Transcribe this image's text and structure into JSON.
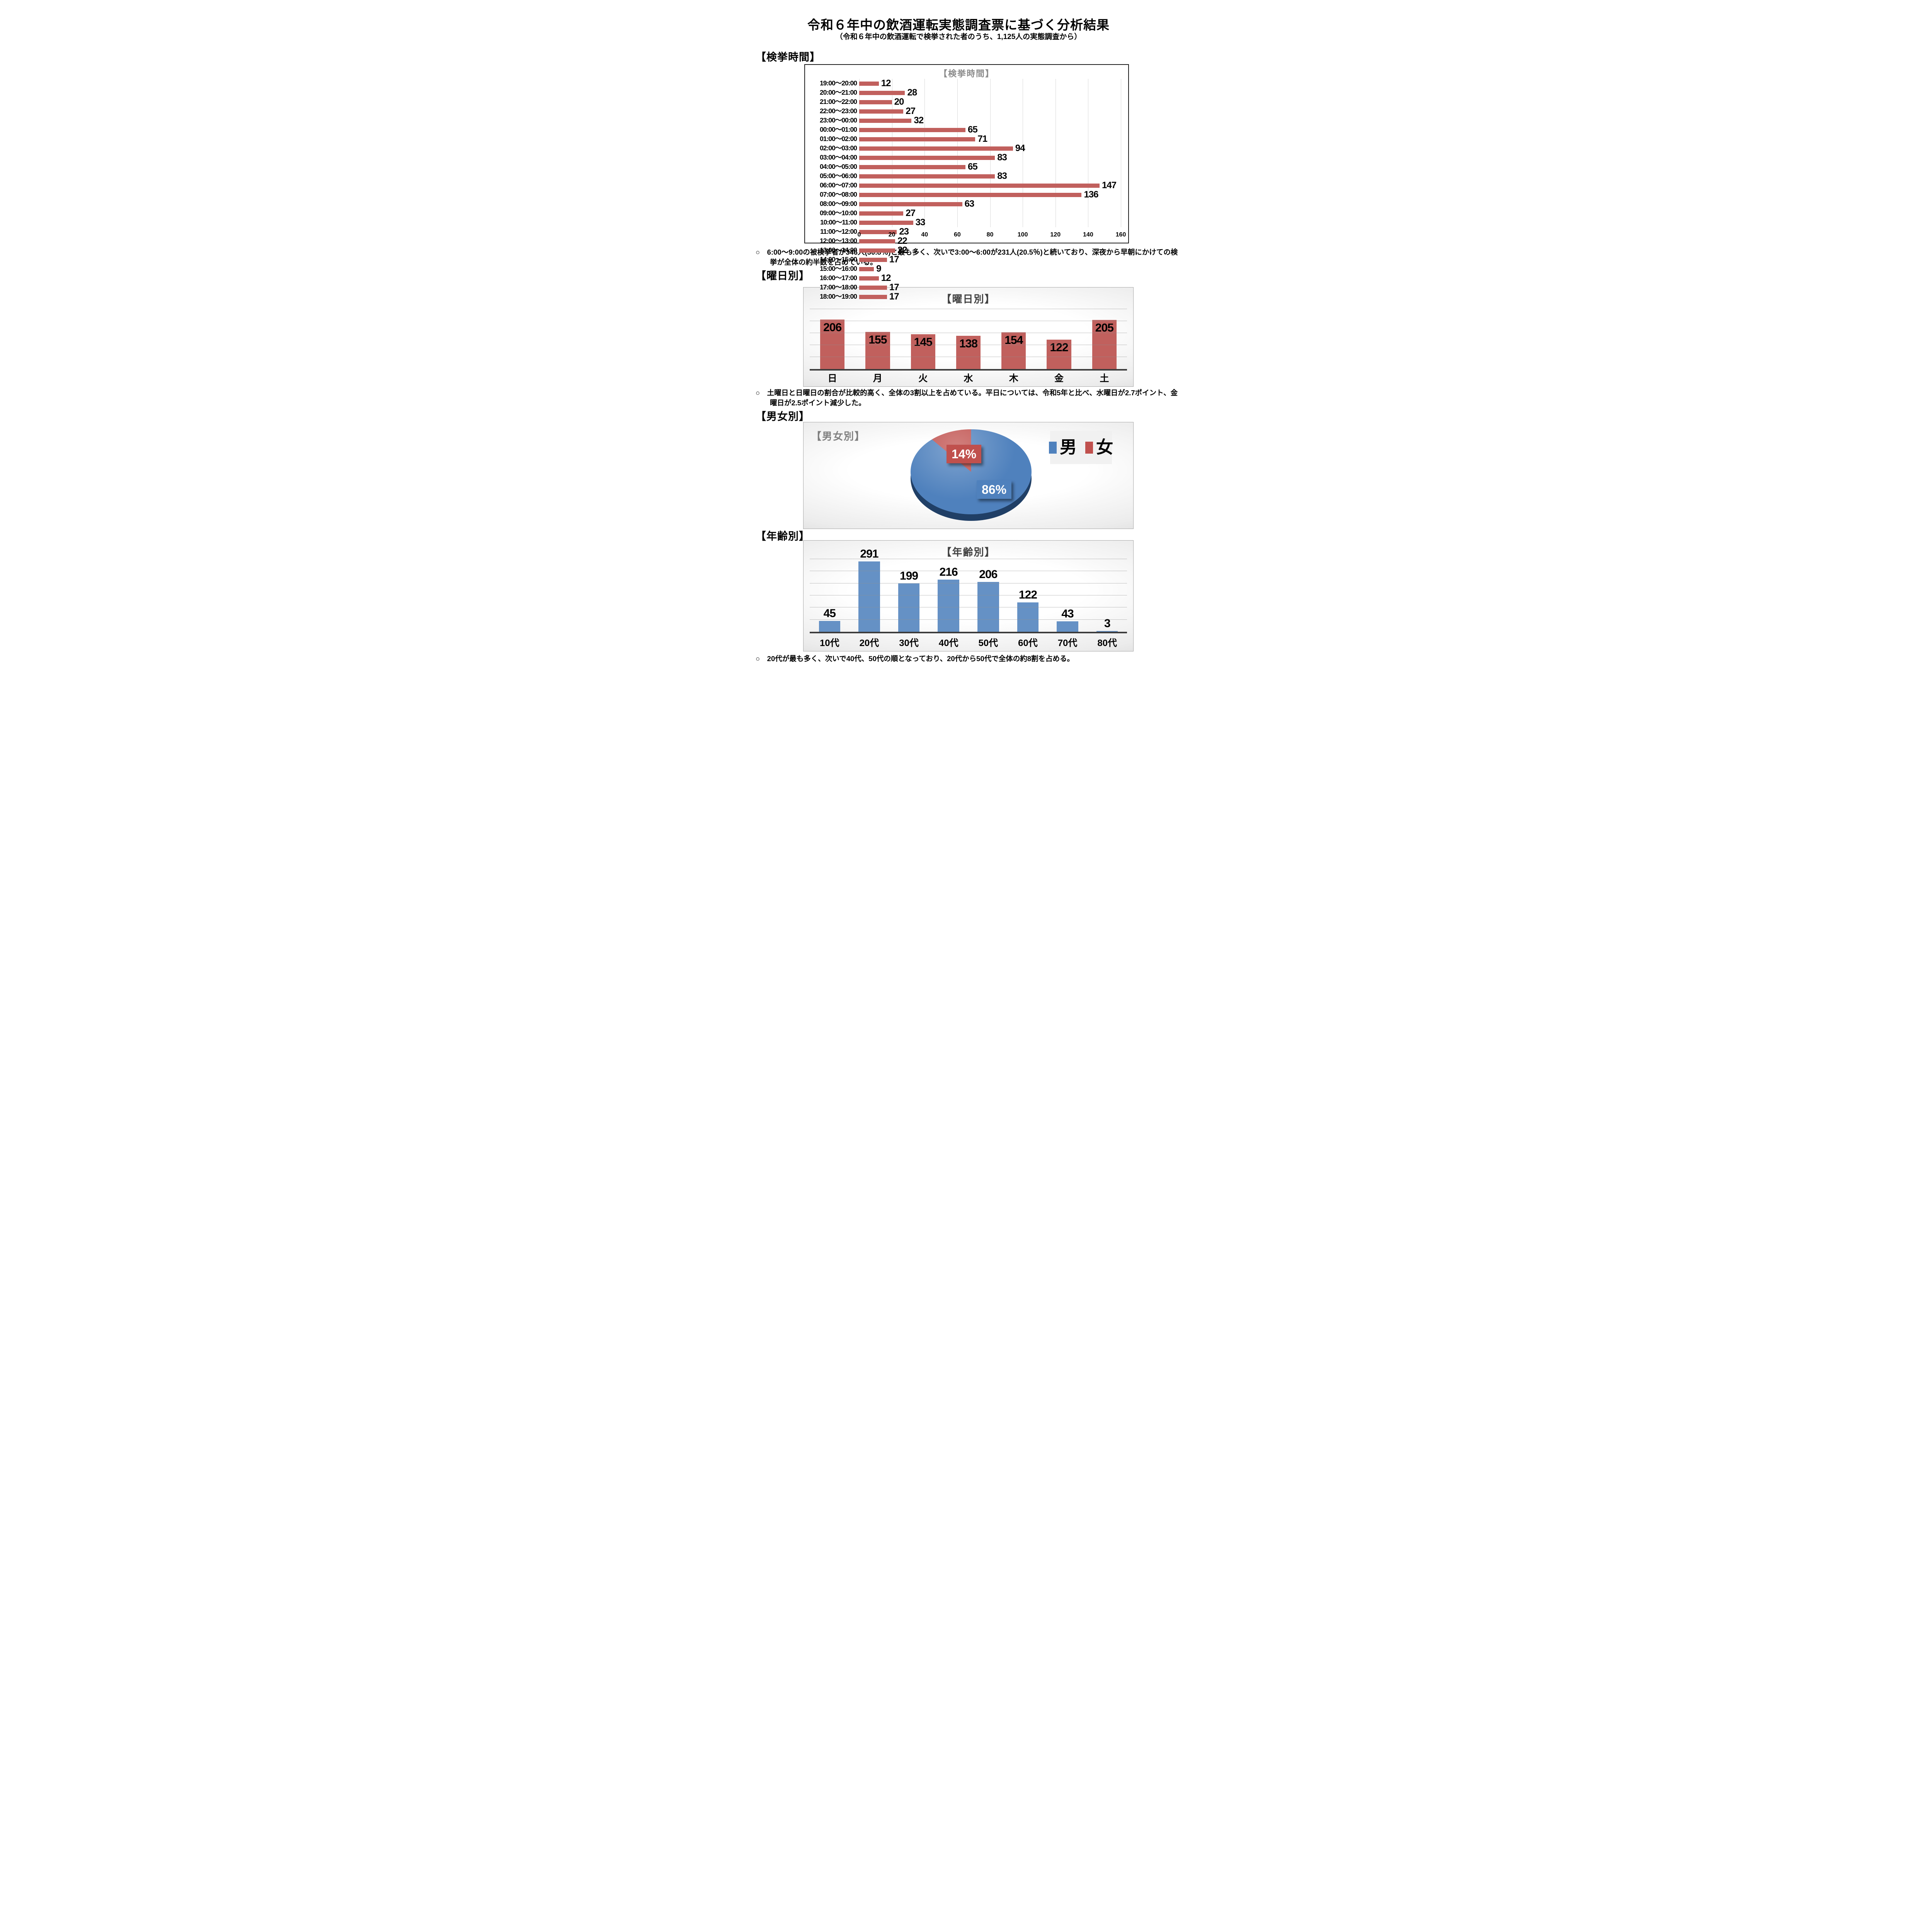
{
  "page": {
    "title": "令和６年中の飲酒運転実態調査票に基づく分析結果",
    "subtitle": "（令和６年中の飲酒運転で検挙された者のうち、1,125人の実態調査から）"
  },
  "sections": {
    "time": {
      "heading": "【検挙時間】",
      "note": "○　6:00～9:00の被検挙者が346人(30.8％)と最も多く、次いで3:00～6:00が231人(20.5％)と続いており、深夜から早朝にかけての検挙が全体の約半数を占めている。"
    },
    "weekday": {
      "heading": "【曜日別】",
      "note": "○　土曜日と日曜日の割合が比較的高く、全体の3割以上を占めている。平日については、令和5年と比べ、水曜日が2.7ポイント、金曜日が2.5ポイント減少した。"
    },
    "gender": {
      "heading": "【男女別】"
    },
    "age": {
      "heading": "【年齢別】",
      "note": "○　20代が最も多く、次いで40代、50代の順となっており、20代から50代で全体の約8割を占める。"
    }
  },
  "chart_data": [
    {
      "type": "bar",
      "orientation": "horizontal",
      "title": "【検挙時間】",
      "categories": [
        "19:00～20:00",
        "20:00～21:00",
        "21:00～22:00",
        "22:00～23:00",
        "23:00～00:00",
        "00:00～01:00",
        "01:00～02:00",
        "02:00～03:00",
        "03:00～04:00",
        "04:00～05:00",
        "05:00～06:00",
        "06:00～07:00",
        "07:00～08:00",
        "08:00～09:00",
        "09:00～10:00",
        "10:00～11:00",
        "11:00～12:00",
        "12:00～13:00",
        "13:00～14:00",
        "14:00～15:00",
        "15:00～16:00",
        "16:00～17:00",
        "17:00～18:00",
        "18:00～19:00"
      ],
      "values": [
        12,
        28,
        20,
        27,
        32,
        65,
        71,
        94,
        83,
        65,
        83,
        147,
        136,
        63,
        27,
        33,
        23,
        22,
        22,
        17,
        9,
        12,
        17,
        17
      ],
      "xlabel": "",
      "ylabel": "",
      "xlim": [
        0,
        160
      ],
      "xticks": [
        0,
        20,
        40,
        60,
        80,
        100,
        120,
        140,
        160
      ],
      "grid": true,
      "bar_color": "#c1605d"
    },
    {
      "type": "bar",
      "orientation": "vertical",
      "title": "【曜日別】",
      "categories": [
        "日",
        "月",
        "火",
        "水",
        "木",
        "金",
        "土"
      ],
      "values": [
        206,
        155,
        145,
        138,
        154,
        122,
        205
      ],
      "xlabel": "",
      "ylabel": "",
      "ylim": [
        0,
        250
      ],
      "grid_step": 50,
      "grid": true,
      "value_label_position": "inside-top",
      "bar_color": "#c1605d"
    },
    {
      "type": "pie",
      "title": "【男女別】",
      "labels": [
        "男",
        "女"
      ],
      "values_pct": [
        86,
        14
      ],
      "pct_labels": [
        "86%",
        "14%"
      ],
      "colors": [
        "#4f81bd",
        "#c0504d"
      ],
      "legend_position": "top-right",
      "style": "3d"
    },
    {
      "type": "bar",
      "orientation": "vertical",
      "title": "【年齢別】",
      "categories": [
        "10代",
        "20代",
        "30代",
        "40代",
        "50代",
        "60代",
        "70代",
        "80代"
      ],
      "values": [
        45,
        291,
        199,
        216,
        206,
        122,
        43,
        3
      ],
      "xlabel": "",
      "ylabel": "",
      "ylim": [
        0,
        300
      ],
      "grid_step": 50,
      "grid": true,
      "value_label_position": "above",
      "bar_color": "#6591c5"
    }
  ]
}
